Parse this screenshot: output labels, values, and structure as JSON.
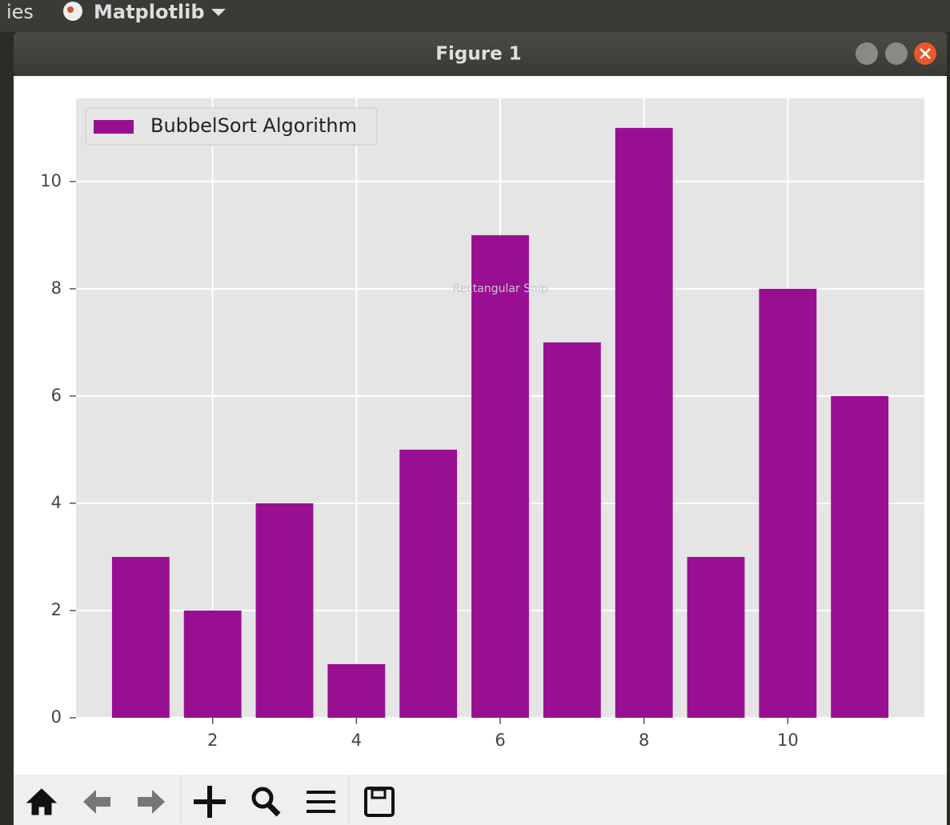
{
  "desktop": {
    "left_text": "ies",
    "app_menu": "Matplotlib"
  },
  "window": {
    "title": "Figure 1",
    "overlay_text": "Rectangular Snip"
  },
  "chart_data": {
    "type": "bar",
    "x": [
      1,
      2,
      3,
      4,
      5,
      6,
      7,
      8,
      9,
      10,
      11
    ],
    "series": [
      {
        "name": "BubbelSort Algorithm",
        "color": "#990f91",
        "values": [
          3,
          2,
          4,
          1,
          5,
          9,
          7,
          11,
          3,
          8,
          6
        ]
      }
    ],
    "xlim": [
      0.1,
      11.9
    ],
    "xticks": [
      2,
      4,
      6,
      8,
      10
    ],
    "ylim": [
      0,
      11.55
    ],
    "yticks": [
      0,
      2,
      4,
      6,
      8,
      10
    ],
    "grid": true,
    "legend": "upper left"
  }
}
